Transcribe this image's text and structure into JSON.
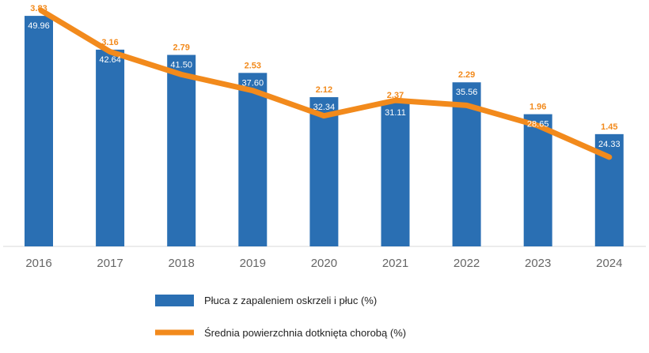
{
  "chart_data": {
    "type": "bar+line",
    "categories": [
      "2016",
      "2017",
      "2018",
      "2019",
      "2020",
      "2021",
      "2022",
      "2023",
      "2024"
    ],
    "series": [
      {
        "name": "Płuca z zapaleniem oskrzeli i płuc (%)",
        "type": "bar",
        "color": "#2a6fb3",
        "values": [
          49.96,
          42.64,
          41.5,
          37.6,
          32.34,
          31.11,
          35.56,
          28.65,
          24.33
        ]
      },
      {
        "name": "Średnia powierzchnia dotknięta chorobą (%)",
        "type": "line",
        "color": "#f28a1c",
        "axis": "secondary",
        "values": [
          3.83,
          3.16,
          2.79,
          2.53,
          2.12,
          2.37,
          2.29,
          1.96,
          1.45
        ]
      }
    ],
    "ylim": [
      0,
      53.4
    ],
    "y2lim": [
      0,
      4.0
    ],
    "grid": false,
    "legend": "bottom"
  }
}
